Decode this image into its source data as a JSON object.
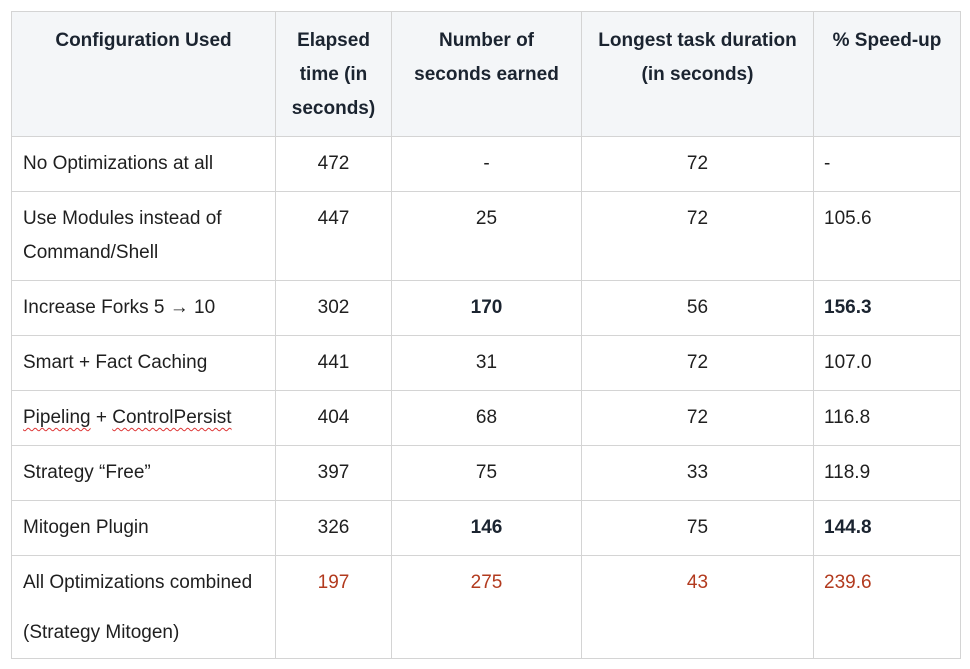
{
  "headers": [
    "Configuration Used",
    "Elapsed time (in seconds)",
    "Number of seconds earned",
    "Longest task duration (in seconds)",
    "% Speed-up"
  ],
  "rows": [
    {
      "config": "No Optimizations at all",
      "elapsed": "472",
      "earned": "-",
      "longest": "72",
      "speedup": "-"
    },
    {
      "config": "Use Modules instead of Command/Shell",
      "elapsed": "447",
      "earned": "25",
      "longest": "72",
      "speedup": "105.6"
    },
    {
      "config": "Increase Forks 5 → 10",
      "elapsed": "302",
      "earned": "170",
      "longest": "56",
      "speedup": "156.3"
    },
    {
      "config": "Smart + Fact Caching",
      "elapsed": "441",
      "earned": "31",
      "longest": "72",
      "speedup": "107.0"
    },
    {
      "config_a": "Pipeling",
      "config_sep": " + ",
      "config_b": "ControlPersist",
      "elapsed": "404",
      "earned": "68",
      "longest": "72",
      "speedup": "116.8"
    },
    {
      "config": "Strategy “Free”",
      "elapsed": "397",
      "earned": "75",
      "longest": "33",
      "speedup": "118.9"
    },
    {
      "config": "Mitogen Plugin",
      "elapsed": "326",
      "earned": "146",
      "longest": "75",
      "speedup": "144.8"
    },
    {
      "config_line1": "All Optimizations combined",
      "config_line2": "(Strategy Mitogen)",
      "elapsed": "197",
      "earned": "275",
      "longest": "43",
      "speedup": "239.6"
    }
  ],
  "colors": {
    "highlight_red": "#b23a1e",
    "header_bg": "#f4f6f8",
    "border": "#d4d4d4"
  }
}
